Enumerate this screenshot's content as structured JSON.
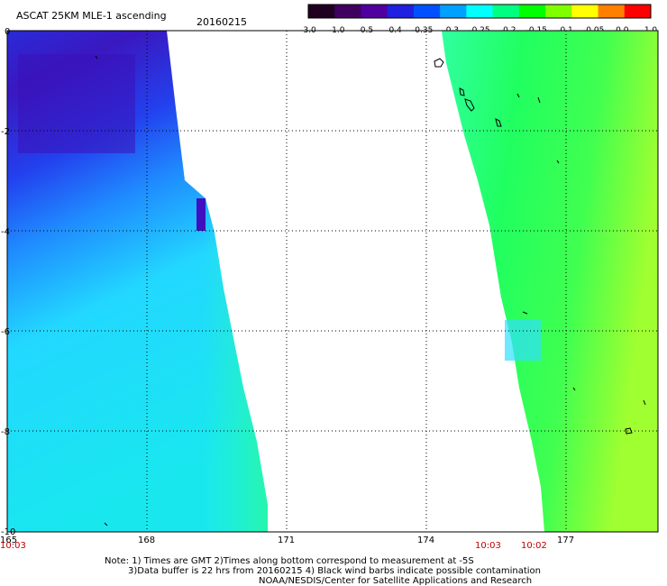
{
  "header": {
    "title": "ASCAT 25KM MLE-1 ascending",
    "date": "20160215"
  },
  "colorbar": {
    "ticks": [
      "-3.0",
      "-1.0",
      "-0.5",
      "-0.4",
      "-0.35",
      "-0.3",
      "-0.25",
      "-0.2",
      "-0.15",
      "-0.1",
      "-0.05",
      "0.0",
      "1.0"
    ],
    "colors": [
      "#200020",
      "#400060",
      "#5000a0",
      "#2020e0",
      "#0050ff",
      "#00a0ff",
      "#00ffff",
      "#00ff80",
      "#00ff00",
      "#80ff00",
      "#ffff00",
      "#ff8000",
      "#ff0000"
    ]
  },
  "axes": {
    "x_ticks": [
      "165",
      "168",
      "171",
      "174",
      "177"
    ],
    "y_ticks": [
      "0",
      "-2",
      "-4",
      "-6",
      "-8",
      "-10"
    ]
  },
  "swath_times": [
    "10:03",
    "10:03",
    "10:02"
  ],
  "notes": [
    "Note: 1) Times are GMT 2)Times along bottom correspond to measurement at -5S",
    "3)Data buffer is 22 hrs from 20160215 4) Black wind barbs indicate possible contamination",
    "NOAA/NESDIS/Center for Satellite Applications and Research"
  ]
}
